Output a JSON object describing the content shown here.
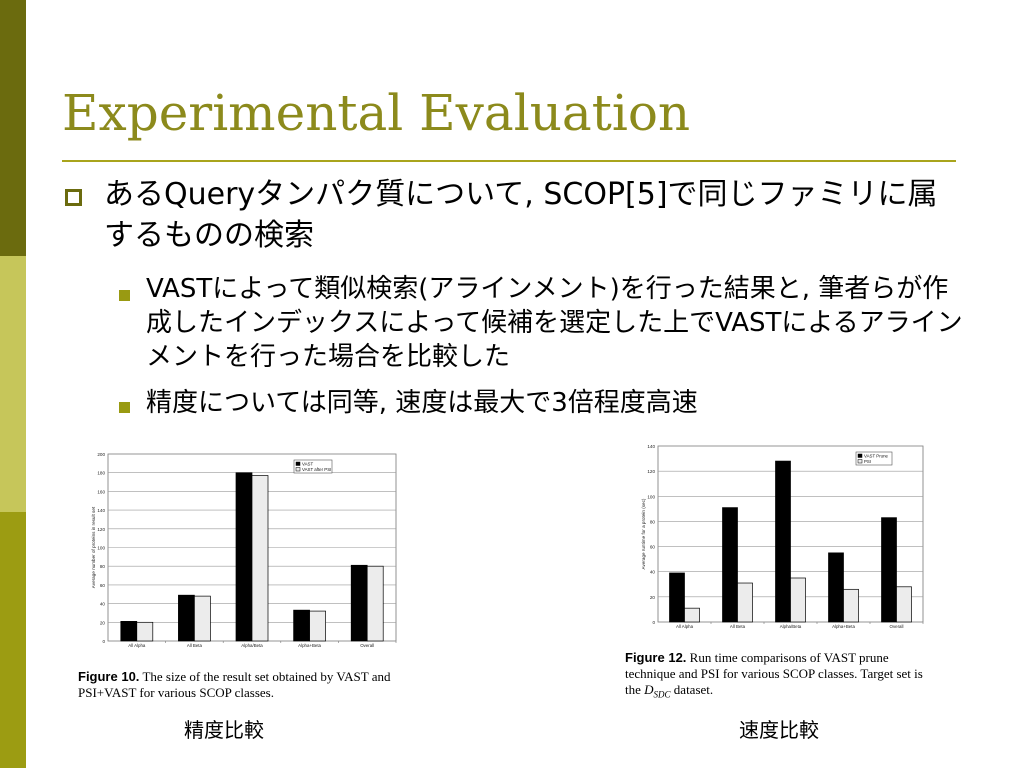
{
  "slide": {
    "title": "Experimental Evaluation",
    "bullet1": "あるQueryタンパク質について, SCOP[5]で同じファミリに属するものの検索",
    "sub_bullets": [
      "VASTによって類似検索(アラインメント)を行った結果と, 筆者らが作成したインデックスによって候補を選定した上でVASTによるアラインメントを行った場合を比較した",
      "精度については同等, 速度は最大で3倍程度高速"
    ],
    "left_label": "精度比較",
    "right_label": "速度比較"
  },
  "figure10": {
    "caption_label": "Figure 10.",
    "caption_text": "The size of the result set obtained by VAST and PSI+VAST for various SCOP classes."
  },
  "figure12": {
    "caption_label": "Figure 12.",
    "caption_text": "Run time comparisons of VAST prune technique and PSI for various SCOP classes. Target set is the",
    "caption_math": "D",
    "caption_sub": "SDC",
    "caption_end": "dataset."
  },
  "colors": {
    "accent": "#8c8a1c",
    "bar_dark": "#000000",
    "bar_light": "#ececec"
  },
  "chart_data": [
    {
      "type": "bar",
      "categories": [
        "All Alpha",
        "All Beta",
        "Alpha/Beta",
        "Alpha+Beta",
        "Overall"
      ],
      "series": [
        {
          "name": "VAST",
          "values": [
            21,
            49,
            180,
            33,
            81
          ]
        },
        {
          "name": "VAST after PSI",
          "values": [
            20,
            48,
            177,
            32,
            80
          ]
        }
      ],
      "ylabel": "Average number of proteins in result set",
      "ylim": [
        0,
        200
      ],
      "yticks": [
        "0",
        "20",
        "40",
        "60",
        "80",
        "100",
        "120",
        "140",
        "160",
        "180",
        "200"
      ],
      "grid": true,
      "legend": "top-right"
    },
    {
      "type": "bar",
      "categories": [
        "All Alpha",
        "All Beta",
        "Alpha/Beta",
        "Alpha+Beta",
        "Overall"
      ],
      "series": [
        {
          "name": "VAST Prune",
          "values": [
            39,
            91,
            128,
            55,
            83
          ]
        },
        {
          "name": "PSI",
          "values": [
            11,
            31,
            35,
            26,
            28
          ]
        }
      ],
      "ylabel": "Average runtime for a protein (sec)",
      "ylim": [
        0,
        140
      ],
      "yticks": [
        "0",
        "20",
        "40",
        "60",
        "80",
        "100",
        "120",
        "140"
      ],
      "grid": true,
      "legend": "top-right"
    }
  ]
}
